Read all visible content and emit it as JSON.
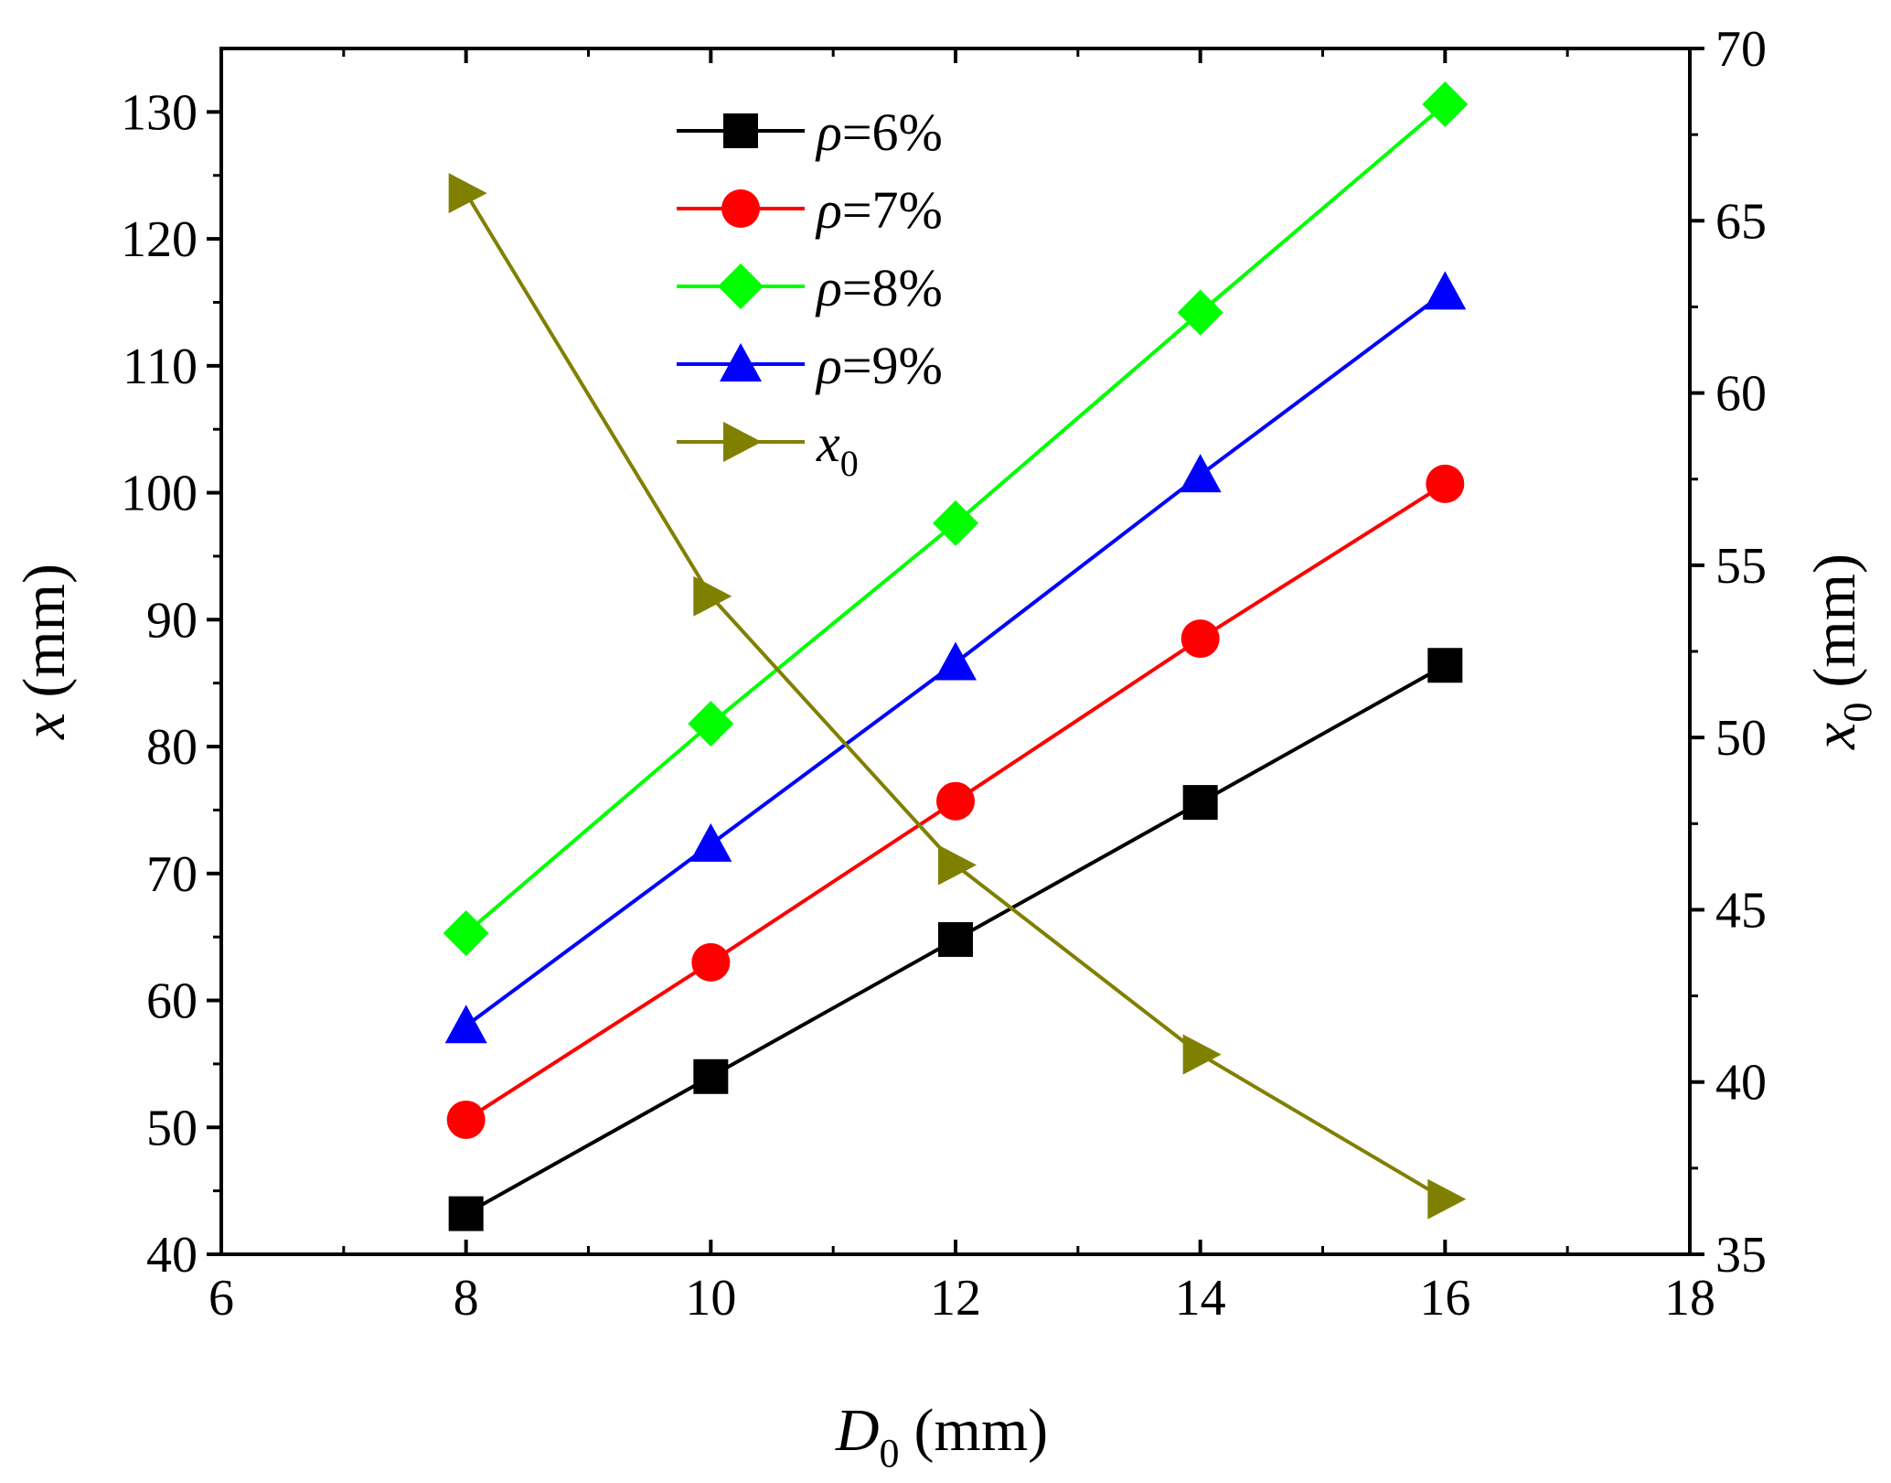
{
  "chart_data": {
    "type": "line",
    "x": [
      8,
      10,
      12,
      14,
      16
    ],
    "xlabel": {
      "symbol": "D",
      "subscript": "0",
      "unit": "(mm)"
    },
    "ylabel_left": {
      "symbol": "x",
      "subscript": "",
      "unit": "(mm)"
    },
    "ylabel_right": {
      "symbol": "x",
      "subscript": "0",
      "unit": "(mm)"
    },
    "xlim": [
      6,
      18
    ],
    "ylim_left": [
      40,
      135
    ],
    "ylim_right": [
      35,
      70
    ],
    "x_ticks": [
      "6",
      "8",
      "10",
      "12",
      "14",
      "16",
      "18"
    ],
    "y_left_ticks": [
      "40",
      "50",
      "60",
      "70",
      "80",
      "90",
      "100",
      "110",
      "120",
      "130"
    ],
    "y_right_ticks": [
      "35",
      "40",
      "45",
      "50",
      "55",
      "60",
      "65",
      "70"
    ],
    "grid": false,
    "legend_position": "top-left",
    "series": [
      {
        "name": "ρ=6%",
        "symbol": "ρ",
        "label_rest": "=6%",
        "subscript": "",
        "axis": "left",
        "marker": "square",
        "color": "#000000",
        "values": [
          43.2,
          54.0,
          64.8,
          75.6,
          86.4
        ]
      },
      {
        "name": "ρ=7%",
        "symbol": "ρ",
        "label_rest": "=7%",
        "subscript": "",
        "axis": "left",
        "marker": "circle",
        "color": "#ff0000",
        "values": [
          50.6,
          63.0,
          75.7,
          88.5,
          100.7
        ]
      },
      {
        "name": "ρ=8%",
        "symbol": "ρ",
        "label_rest": "=8%",
        "subscript": "",
        "axis": "left",
        "marker": "diamond",
        "color": "#00ff00",
        "values": [
          65.3,
          81.8,
          97.6,
          114.2,
          130.6
        ]
      },
      {
        "name": "ρ=9%",
        "symbol": "ρ",
        "label_rest": "=9%",
        "subscript": "",
        "axis": "left",
        "marker": "triangle-up",
        "color": "#0000ff",
        "values": [
          58.0,
          72.3,
          86.6,
          101.4,
          115.8
        ]
      },
      {
        "name": "x0",
        "symbol": "x",
        "label_rest": "",
        "subscript": "0",
        "axis": "right",
        "marker": "triangle-right",
        "color": "#808000",
        "values": [
          65.8,
          54.1,
          46.3,
          40.8,
          36.6
        ]
      }
    ]
  }
}
